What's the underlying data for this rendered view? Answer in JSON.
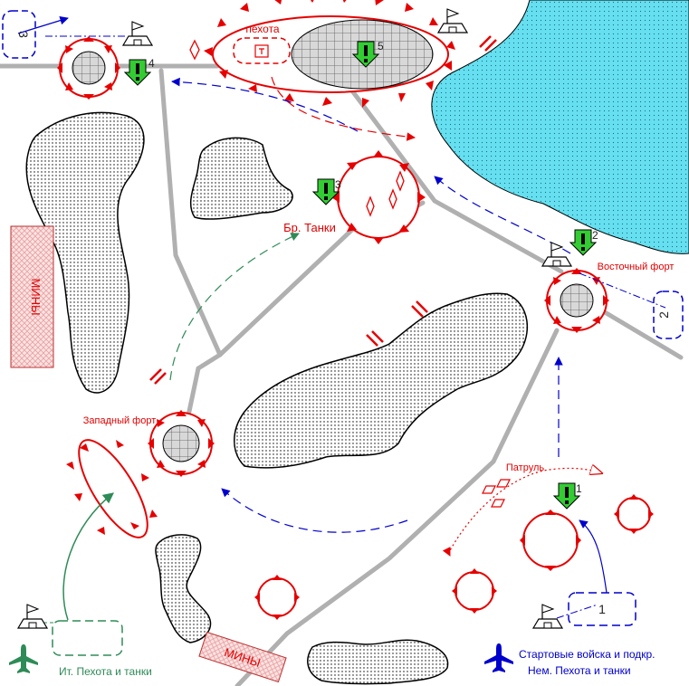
{
  "colors": {
    "enemy_red": "#e60000",
    "friendly_blue": "#0000cc",
    "allied_green": "#2e8b57",
    "water": "#66e0f0",
    "road": "#b0b0b0",
    "marker_green": "#33cc33",
    "minefield": "#f8c8c8"
  },
  "labels": {
    "infantry": "пехота",
    "br_tanks": "Бр. Танки",
    "east_fort": "Восточный форт",
    "west_fort": "Западный форт",
    "patrol": "Патруль",
    "mines_left": "МИНЫ",
    "mines_bottom": "МИНЫ",
    "it_forces": "Ит. Пехота и танки",
    "start_line1": "Стартовые войска и подкр.",
    "start_line2": "Нем. Пехота и танки"
  },
  "objectives": [
    {
      "number": "1"
    },
    {
      "number": "2"
    },
    {
      "number": "3"
    },
    {
      "number": "4"
    },
    {
      "number": "5"
    }
  ],
  "zones": {
    "zone1": "1",
    "zone2": "2",
    "zone3": "3"
  },
  "icons": {
    "friendly_aircraft": "airplane-icon",
    "allied_aircraft": "airplane-icon",
    "objective_marker": "exclamation-arrow-icon",
    "hq": "flag-bunker-icon"
  }
}
